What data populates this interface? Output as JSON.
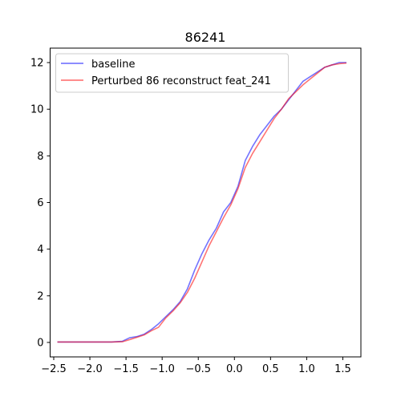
{
  "chart_data": {
    "type": "line",
    "title": "86241",
    "xlabel": "",
    "ylabel": "",
    "xlim": [
      -2.55,
      1.75
    ],
    "ylim": [
      -0.62,
      12.62
    ],
    "x_ticks": [
      -2.5,
      -2.0,
      -1.5,
      -1.0,
      -0.5,
      0.0,
      0.5,
      1.0,
      1.5
    ],
    "x_tick_labels": [
      "−2.5",
      "−2.0",
      "−1.5",
      "−1.0",
      "−0.5",
      "0.0",
      "0.5",
      "1.0",
      "1.5"
    ],
    "y_ticks": [
      0,
      2,
      4,
      6,
      8,
      10,
      12
    ],
    "y_tick_labels": [
      "0",
      "2",
      "4",
      "6",
      "8",
      "10",
      "12"
    ],
    "grid": false,
    "legend_position": "top-left",
    "series": [
      {
        "name": "baseline",
        "color": "#0000ff",
        "x": [
          -2.45,
          -2.3,
          -2.0,
          -1.7,
          -1.55,
          -1.45,
          -1.35,
          -1.25,
          -1.15,
          -1.05,
          -0.95,
          -0.85,
          -0.75,
          -0.65,
          -0.55,
          -0.45,
          -0.35,
          -0.25,
          -0.15,
          -0.05,
          0.05,
          0.15,
          0.25,
          0.35,
          0.45,
          0.55,
          0.65,
          0.75,
          0.85,
          0.95,
          1.05,
          1.15,
          1.25,
          1.35,
          1.45,
          1.55
        ],
        "y": [
          0.02,
          0.02,
          0.02,
          0.02,
          0.05,
          0.2,
          0.25,
          0.35,
          0.55,
          0.8,
          1.1,
          1.4,
          1.75,
          2.3,
          3.1,
          3.8,
          4.4,
          4.9,
          5.6,
          6.0,
          6.7,
          7.8,
          8.4,
          8.9,
          9.3,
          9.7,
          10.0,
          10.4,
          10.8,
          11.2,
          11.4,
          11.6,
          11.8,
          11.9,
          12.0,
          12.0
        ]
      },
      {
        "name": "Perturbed 86 reconstruct feat_241",
        "color": "#ff0000",
        "x": [
          -2.45,
          -2.3,
          -2.0,
          -1.7,
          -1.55,
          -1.45,
          -1.35,
          -1.25,
          -1.15,
          -1.05,
          -0.95,
          -0.85,
          -0.75,
          -0.65,
          -0.55,
          -0.45,
          -0.35,
          -0.25,
          -0.15,
          -0.05,
          0.05,
          0.15,
          0.25,
          0.35,
          0.45,
          0.55,
          0.65,
          0.75,
          0.85,
          0.95,
          1.05,
          1.15,
          1.25,
          1.35,
          1.45,
          1.55
        ],
        "y": [
          0.02,
          0.02,
          0.02,
          0.02,
          0.03,
          0.12,
          0.22,
          0.32,
          0.5,
          0.65,
          1.05,
          1.35,
          1.7,
          2.15,
          2.75,
          3.45,
          4.15,
          4.75,
          5.35,
          5.9,
          6.6,
          7.5,
          8.1,
          8.6,
          9.1,
          9.6,
          10.0,
          10.45,
          10.75,
          11.05,
          11.3,
          11.55,
          11.8,
          11.9,
          11.95,
          11.98
        ]
      }
    ]
  }
}
